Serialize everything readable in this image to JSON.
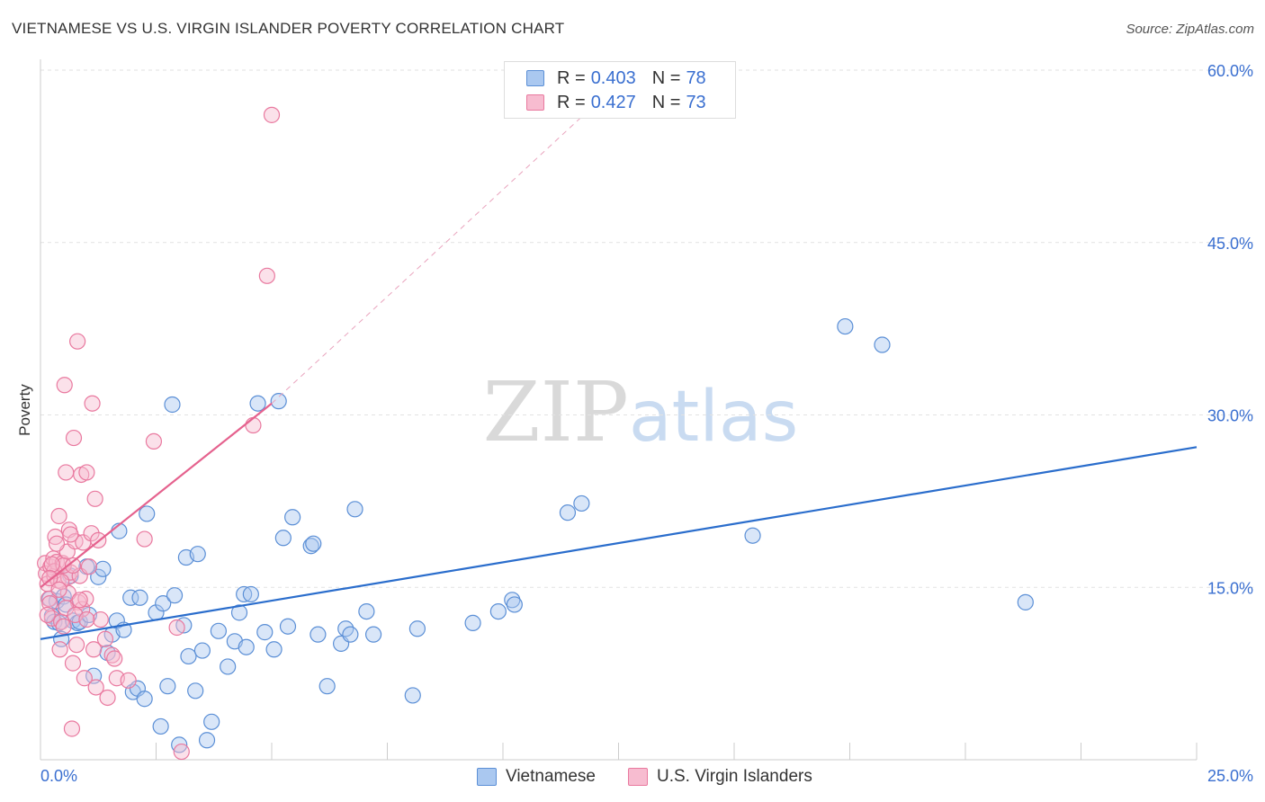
{
  "title": "VIETNAMESE VS U.S. VIRGIN ISLANDER POVERTY CORRELATION CHART",
  "source": "Source: ZipAtlas.com",
  "watermark": {
    "part1": "ZIP",
    "part2": "atlas"
  },
  "legend": [
    {
      "r_label": "R =",
      "r_value": "0.403",
      "n_label": "N =",
      "n_value": "78"
    },
    {
      "r_label": "R =",
      "r_value": "0.427",
      "n_label": "N =",
      "n_value": "73"
    }
  ],
  "bottom_legend": [
    "Vietnamese",
    "U.S. Virgin Islanders"
  ],
  "colors": {
    "blue_fill": "#aac8f0",
    "blue_stroke": "#5b8fd6",
    "blue_line": "#2a6dcc",
    "pink_fill": "#f7bcd0",
    "pink_stroke": "#e9799f",
    "pink_line": "#e5628e",
    "grid": "#e2e2e2",
    "axis_label": "#3a6fd0"
  },
  "chart_data": {
    "type": "scatter",
    "title": "VIETNAMESE VS U.S. VIRGIN ISLANDER POVERTY CORRELATION CHART",
    "xlabel": "",
    "ylabel": "Poverty",
    "xlim": [
      0,
      25
    ],
    "ylim": [
      0,
      60
    ],
    "x_tick_labels": [
      "0.0%",
      "25.0%"
    ],
    "y_ticks": [
      15,
      30,
      45,
      60
    ],
    "y_tick_labels": [
      "15.0%",
      "30.0%",
      "45.0%",
      "60.0%"
    ],
    "grid": true,
    "series": [
      {
        "name": "Vietnamese",
        "R": 0.403,
        "N": 78,
        "trend": {
          "x": [
            0,
            25
          ],
          "y": [
            10.5,
            27.2
          ]
        },
        "points": [
          [
            0.2,
            14.0
          ],
          [
            0.25,
            12.5
          ],
          [
            0.3,
            12.0
          ],
          [
            0.35,
            13.8
          ],
          [
            0.4,
            11.9
          ],
          [
            0.45,
            10.5
          ],
          [
            0.5,
            14.2
          ],
          [
            0.55,
            13.5
          ],
          [
            0.65,
            16.0
          ],
          [
            0.7,
            12.1
          ],
          [
            0.8,
            11.9
          ],
          [
            0.85,
            12.0
          ],
          [
            1.0,
            16.8
          ],
          [
            1.05,
            12.6
          ],
          [
            1.15,
            7.3
          ],
          [
            1.25,
            15.9
          ],
          [
            1.35,
            16.6
          ],
          [
            1.45,
            9.3
          ],
          [
            1.55,
            10.9
          ],
          [
            1.65,
            12.1
          ],
          [
            1.7,
            19.9
          ],
          [
            1.8,
            11.3
          ],
          [
            1.95,
            14.1
          ],
          [
            2.0,
            5.9
          ],
          [
            2.1,
            6.2
          ],
          [
            2.15,
            14.1
          ],
          [
            2.25,
            5.3
          ],
          [
            2.3,
            21.4
          ],
          [
            2.5,
            12.8
          ],
          [
            2.6,
            2.9
          ],
          [
            2.65,
            13.6
          ],
          [
            2.75,
            6.4
          ],
          [
            2.85,
            30.9
          ],
          [
            2.9,
            14.3
          ],
          [
            3.0,
            1.3
          ],
          [
            3.1,
            11.7
          ],
          [
            3.15,
            17.6
          ],
          [
            3.2,
            9.0
          ],
          [
            3.35,
            6.0
          ],
          [
            3.4,
            17.9
          ],
          [
            3.5,
            9.5
          ],
          [
            3.6,
            1.7
          ],
          [
            3.7,
            3.3
          ],
          [
            3.85,
            11.2
          ],
          [
            4.05,
            8.1
          ],
          [
            4.2,
            10.3
          ],
          [
            4.3,
            12.8
          ],
          [
            4.4,
            14.4
          ],
          [
            4.45,
            9.8
          ],
          [
            4.55,
            14.4
          ],
          [
            4.7,
            31.0
          ],
          [
            4.85,
            11.1
          ],
          [
            5.05,
            9.6
          ],
          [
            5.15,
            31.2
          ],
          [
            5.25,
            19.3
          ],
          [
            5.35,
            11.6
          ],
          [
            5.45,
            21.1
          ],
          [
            5.85,
            18.6
          ],
          [
            5.9,
            18.8
          ],
          [
            6.0,
            10.9
          ],
          [
            6.2,
            6.4
          ],
          [
            6.5,
            10.1
          ],
          [
            6.6,
            11.4
          ],
          [
            6.7,
            10.9
          ],
          [
            6.8,
            21.8
          ],
          [
            7.05,
            12.9
          ],
          [
            7.2,
            10.9
          ],
          [
            8.05,
            5.6
          ],
          [
            8.15,
            11.4
          ],
          [
            9.35,
            11.9
          ],
          [
            9.9,
            12.9
          ],
          [
            10.2,
            13.9
          ],
          [
            10.25,
            13.5
          ],
          [
            11.4,
            21.5
          ],
          [
            11.7,
            22.3
          ],
          [
            15.4,
            19.5
          ],
          [
            17.4,
            37.7
          ],
          [
            18.2,
            36.1
          ],
          [
            21.3,
            13.7
          ]
        ]
      },
      {
        "name": "U.S. Virgin Islanders",
        "R": 0.427,
        "N": 73,
        "trend": {
          "x": [
            0,
            5.0
          ],
          "y": [
            15.0,
            31.0
          ]
        },
        "trend_extension": {
          "x": [
            5.0,
            11.8
          ],
          "y": [
            31.0,
            56.3
          ]
        },
        "points": [
          [
            0.1,
            17.1
          ],
          [
            0.12,
            16.2
          ],
          [
            0.15,
            15.3
          ],
          [
            0.18,
            14.0
          ],
          [
            0.2,
            13.6
          ],
          [
            0.22,
            16.8
          ],
          [
            0.25,
            12.3
          ],
          [
            0.28,
            17.5
          ],
          [
            0.3,
            16.0
          ],
          [
            0.32,
            19.4
          ],
          [
            0.35,
            17.2
          ],
          [
            0.38,
            15.6
          ],
          [
            0.4,
            21.2
          ],
          [
            0.42,
            9.6
          ],
          [
            0.45,
            12.0
          ],
          [
            0.48,
            17.1
          ],
          [
            0.5,
            11.6
          ],
          [
            0.52,
            32.6
          ],
          [
            0.55,
            25.0
          ],
          [
            0.58,
            18.1
          ],
          [
            0.6,
            15.9
          ],
          [
            0.62,
            20.0
          ],
          [
            0.65,
            16.3
          ],
          [
            0.68,
            2.7
          ],
          [
            0.7,
            8.4
          ],
          [
            0.72,
            28.0
          ],
          [
            0.75,
            19.0
          ],
          [
            0.78,
            10.0
          ],
          [
            0.8,
            36.4
          ],
          [
            0.82,
            13.7
          ],
          [
            0.85,
            16.0
          ],
          [
            0.88,
            24.8
          ],
          [
            0.9,
            13.1
          ],
          [
            0.92,
            18.9
          ],
          [
            0.95,
            7.1
          ],
          [
            0.98,
            14.0
          ],
          [
            1.0,
            25.0
          ],
          [
            1.05,
            16.8
          ],
          [
            1.1,
            19.7
          ],
          [
            1.12,
            31.0
          ],
          [
            1.15,
            9.6
          ],
          [
            1.18,
            22.7
          ],
          [
            1.2,
            6.3
          ],
          [
            1.25,
            19.1
          ],
          [
            1.3,
            12.2
          ],
          [
            1.4,
            10.5
          ],
          [
            1.45,
            5.4
          ],
          [
            1.55,
            9.1
          ],
          [
            1.6,
            8.8
          ],
          [
            1.65,
            7.1
          ],
          [
            1.9,
            6.9
          ],
          [
            2.25,
            19.2
          ],
          [
            2.45,
            27.7
          ],
          [
            2.95,
            11.5
          ],
          [
            3.05,
            0.7
          ],
          [
            4.6,
            29.1
          ],
          [
            4.9,
            42.1
          ],
          [
            5.0,
            56.1
          ],
          [
            0.15,
            12.6
          ],
          [
            0.3,
            16.4
          ],
          [
            0.5,
            16.9
          ],
          [
            0.6,
            14.5
          ],
          [
            0.7,
            16.9
          ],
          [
            0.25,
            17.0
          ],
          [
            0.45,
            15.5
          ],
          [
            0.55,
            13.2
          ],
          [
            0.35,
            18.8
          ],
          [
            0.65,
            19.6
          ],
          [
            0.2,
            15.8
          ],
          [
            0.4,
            14.8
          ],
          [
            0.75,
            12.6
          ],
          [
            0.85,
            13.9
          ],
          [
            1.0,
            12.2
          ]
        ]
      }
    ]
  }
}
